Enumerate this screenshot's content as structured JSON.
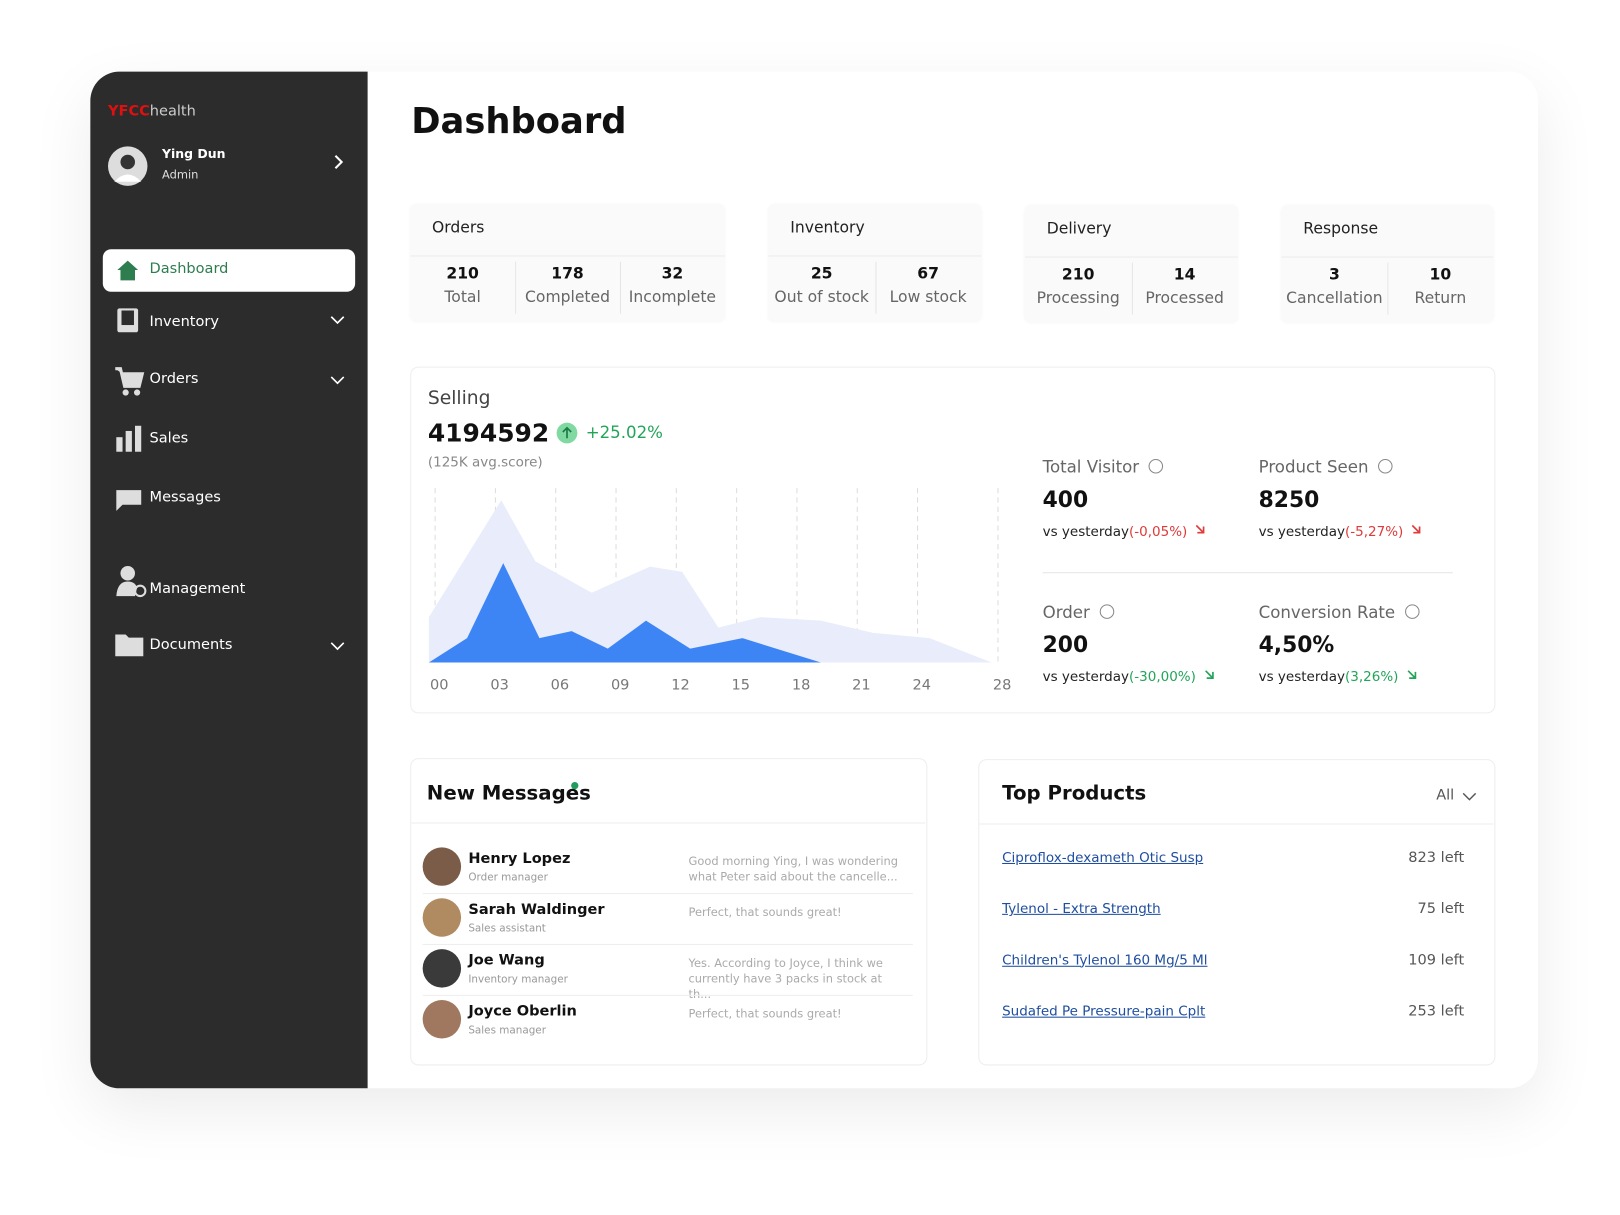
{
  "brand": {
    "mark": "YFCC",
    "rest": "health"
  },
  "user": {
    "name": "Ying Dun",
    "role": "Admin"
  },
  "nav": [
    "Dashboard",
    "Inventory",
    "Orders",
    "Sales",
    "Messages",
    "Management",
    "Documents"
  ],
  "page_title": "Dashboard",
  "stat_cards": [
    {
      "title": "Orders",
      "items": [
        {
          "value": 210,
          "label": "Total"
        },
        {
          "value": 178,
          "label": "Completed"
        },
        {
          "value": 32,
          "label": "Incomplete"
        }
      ]
    },
    {
      "title": "Inventory",
      "items": [
        {
          "value": 25,
          "label": "Out of stock"
        },
        {
          "value": 67,
          "label": "Low stock"
        }
      ]
    },
    {
      "title": "Delivery",
      "items": [
        {
          "value": 210,
          "label": "Processing"
        },
        {
          "value": 14,
          "label": "Processed"
        }
      ]
    },
    {
      "title": "Response",
      "items": [
        {
          "value": 3,
          "label": "Cancellation"
        },
        {
          "value": 10,
          "label": "Return"
        }
      ]
    }
  ],
  "selling": {
    "title": "Selling",
    "value": 4194592,
    "change": "+25.02%",
    "note": "(125K avg.score)",
    "chart": {
      "type": "area",
      "xlim": [
        0,
        28
      ],
      "ylim": [
        0,
        100
      ],
      "xticks": [
        {
          "value": 0,
          "label": "00"
        },
        {
          "value": 3,
          "label": "03"
        },
        {
          "value": 6,
          "label": "06"
        },
        {
          "value": 9,
          "label": "09"
        },
        12,
        15,
        18,
        21,
        24,
        28
      ],
      "grid": true,
      "series": [
        {
          "color": "#e8ecfb",
          "x": [
            0,
            3.6,
            5.3,
            8.1,
            11,
            12.6,
            14.4,
            16.5,
            19.5,
            22.1,
            24.9,
            28
          ],
          "values": [
            26,
            93,
            58,
            40,
            55,
            52,
            20,
            26,
            24,
            17,
            14,
            0
          ]
        },
        {
          "color": "#3d85f5",
          "x": [
            0,
            1.9,
            3.7,
            5.5,
            7.1,
            8.9,
            10.8,
            13,
            15.6,
            19.5
          ],
          "values": [
            0,
            14,
            57,
            14,
            18,
            8,
            24,
            8,
            14,
            0
          ]
        }
      ]
    }
  },
  "metrics": [
    {
      "label": "Total Visitor",
      "value": 400,
      "vs": "vs yesterday",
      "change": "(-0,05%)",
      "color": "#e03a3a"
    },
    {
      "label": "Product Seen",
      "value": 8250,
      "vs": "vs yesterday",
      "change": "(-5,27%)",
      "color": "#e03a3a"
    },
    {
      "label": "Order",
      "value": 200,
      "vs": "vs yesterday",
      "change": "(-30,00%)",
      "color": "#22a559"
    },
    {
      "label": "Conversion Rate",
      "value": "4,50%",
      "vs": "vs yesterday",
      "change": "(3,26%)",
      "color": "#22a559"
    }
  ],
  "messages": {
    "title": "New Messages",
    "items": [
      {
        "name": "Henry Lopez",
        "role": "Order manager",
        "text": "Good morning Ying, I was wondering what Peter said about the cancelle..."
      },
      {
        "name": "Sarah Waldinger",
        "role": "Sales assistant",
        "text": "Perfect, that sounds great!"
      },
      {
        "name": "Joe Wang",
        "role": "Inventory manager",
        "text": "Yes. According to Joyce, I think we currently have 3 packs in stock at th..."
      },
      {
        "name": "Joyce Oberlin",
        "role": "Sales manager",
        "text": "Perfect, that sounds great!"
      }
    ]
  },
  "top_products": {
    "title": "Top Products",
    "filter": "All",
    "items": [
      {
        "name": "Ciproflox-dexameth Otic Susp",
        "stock": "823 left"
      },
      {
        "name": "Tylenol - Extra Strength",
        "stock": "75 left"
      },
      {
        "name": "Children's Tylenol 160 Mg/5 Ml",
        "stock": "109 left"
      },
      {
        "name": "Sudafed Pe Pressure-pain Cplt",
        "stock": "253 left"
      }
    ]
  }
}
